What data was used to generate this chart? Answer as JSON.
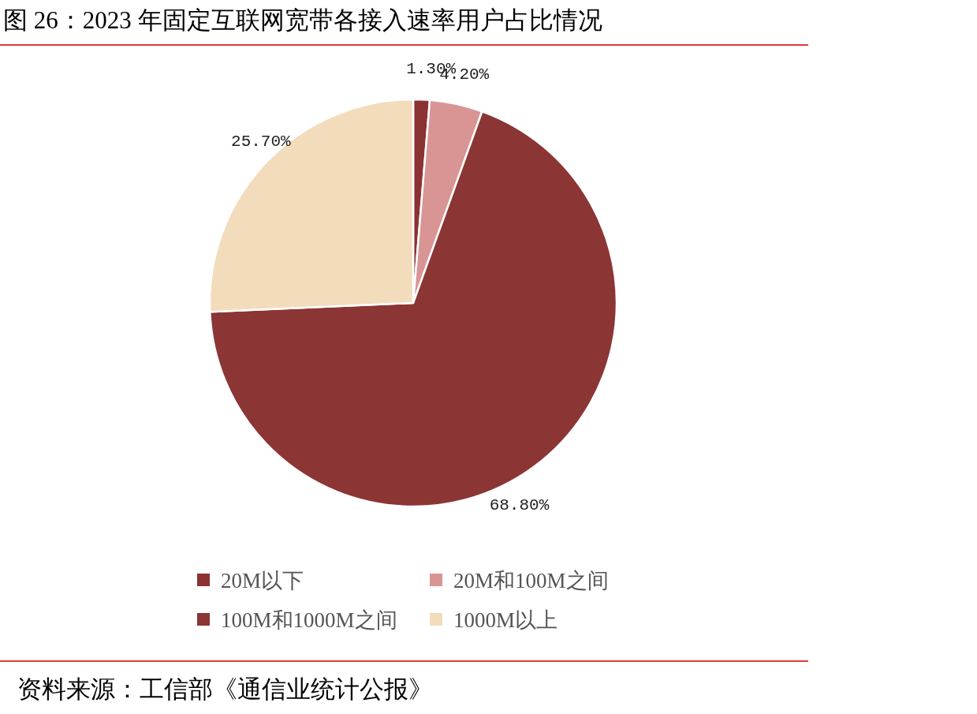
{
  "chart_data": {
    "type": "pie",
    "title": "图 26：2023 年固定互联网宽带各接入速率用户占比情况",
    "categories": [
      "20M以下",
      "20M和100M之间",
      "100M和1000M之间",
      "1000M以上"
    ],
    "values": [
      1.3,
      4.2,
      68.8,
      25.7
    ],
    "value_labels": [
      "1.30%",
      "4.20%",
      "68.80%",
      "25.70%"
    ],
    "colors": [
      "#8b3232",
      "#d99594",
      "#8b3534",
      "#f2dcbb"
    ],
    "legend": "bottom",
    "annotations": [
      "资料来源：工信部《通信业统计公报》"
    ]
  }
}
